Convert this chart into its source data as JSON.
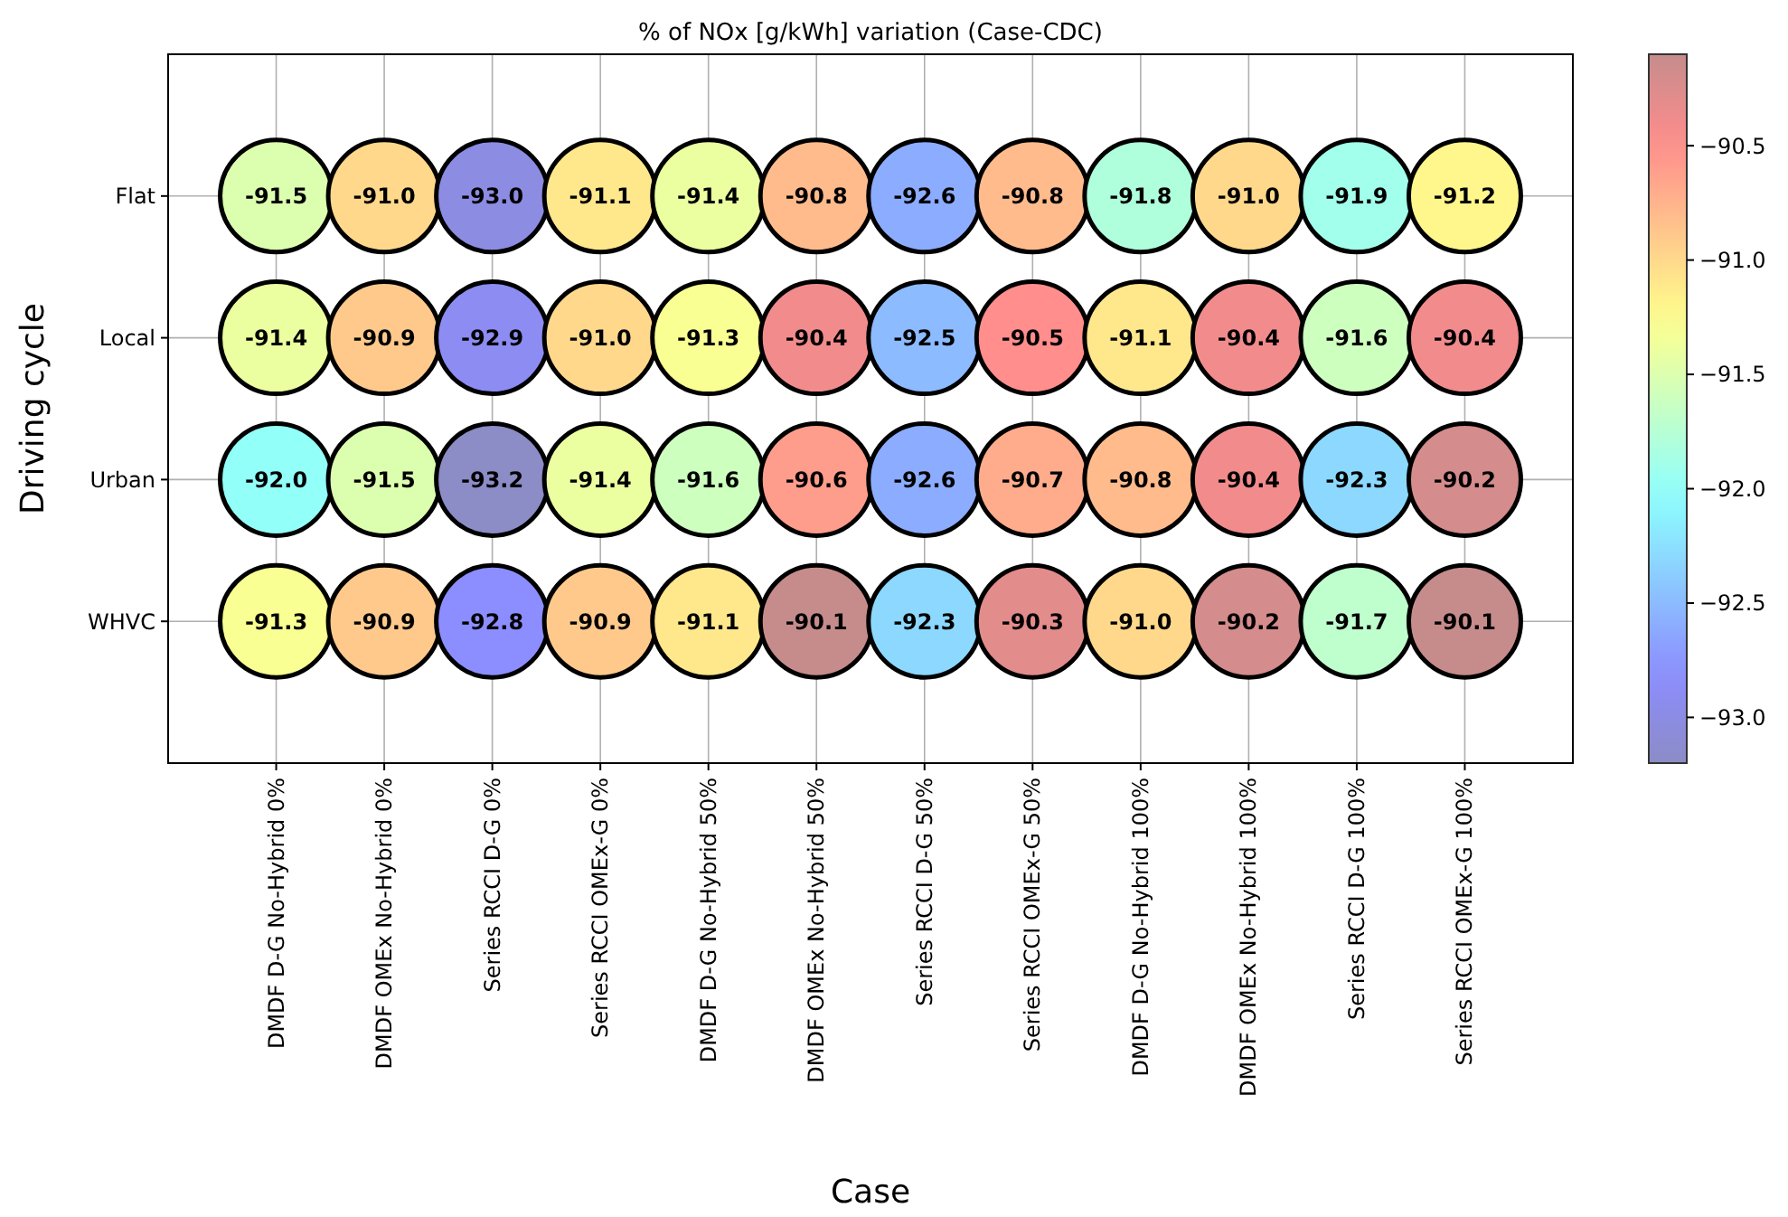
{
  "chart_data": {
    "type": "heatmap",
    "title": "% of NOx [g/kWh] variation (Case-CDC)",
    "xlabel": "Case",
    "ylabel": "Driving cycle",
    "categories": [
      "DMDF D-G No-Hybrid 0%",
      "DMDF OMEx No-Hybrid 0%",
      "Series RCCI D-G 0%",
      "Series RCCI OMEx-G 0%",
      "DMDF D-G No-Hybrid 50%",
      "DMDF OMEx No-Hybrid 50%",
      "Series RCCI D-G 50%",
      "Series RCCI OMEx-G 50%",
      "DMDF D-G No-Hybrid 100%",
      "DMDF OMEx No-Hybrid 100%",
      "Series RCCI D-G 100%",
      "Series RCCI OMEx-G 100%"
    ],
    "y_categories": [
      "Flat",
      "Local",
      "Urban",
      "WHVC"
    ],
    "cells": [
      [
        -91.5,
        -91.0,
        -93.0,
        -91.1,
        -91.4,
        -90.8,
        -92.6,
        -90.8,
        -91.8,
        -91.0,
        -91.9,
        -91.2
      ],
      [
        -91.4,
        -90.9,
        -92.9,
        -91.0,
        -91.3,
        -90.4,
        -92.5,
        -90.5,
        -91.1,
        -90.4,
        -91.6,
        -90.4
      ],
      [
        -92.0,
        -91.5,
        -93.2,
        -91.4,
        -91.6,
        -90.6,
        -92.6,
        -90.7,
        -90.8,
        -90.4,
        -92.3,
        -90.2
      ],
      [
        -91.3,
        -90.9,
        -92.8,
        -90.9,
        -91.1,
        -90.1,
        -92.3,
        -90.3,
        -91.0,
        -90.2,
        -91.7,
        -90.1
      ]
    ],
    "cell_labels": [
      [
        "-91.5",
        "-91.0",
        "-93.0",
        "-91.1",
        "-91.4",
        "-90.8",
        "-92.6",
        "-90.8",
        "-91.8",
        "-91.0",
        "-91.9",
        "-91.2"
      ],
      [
        "-91.4",
        "-90.9",
        "-92.9",
        "-91.0",
        "-91.3",
        "-90.4",
        "-92.5",
        "-90.5",
        "-91.1",
        "-90.4",
        "-91.6",
        "-90.4"
      ],
      [
        "-92.0",
        "-91.5",
        "-93.2",
        "-91.4",
        "-91.6",
        "-90.6",
        "-92.6",
        "-90.7",
        "-90.8",
        "-90.4",
        "-92.3",
        "-90.2"
      ],
      [
        "-91.3",
        "-90.9",
        "-92.8",
        "-90.9",
        "-91.1",
        "-90.1",
        "-92.3",
        "-90.3",
        "-91.0",
        "-90.2",
        "-91.7",
        "-90.1"
      ]
    ],
    "clim": [
      -93.2,
      -90.1
    ],
    "cticks": [
      {
        "value": -93.0,
        "label": "−93.0"
      },
      {
        "value": -92.5,
        "label": "−92.5"
      },
      {
        "value": -92.0,
        "label": "−92.0"
      },
      {
        "value": -91.5,
        "label": "−91.5"
      },
      {
        "value": -91.0,
        "label": "−91.0"
      },
      {
        "value": -90.5,
        "label": "−90.5"
      }
    ],
    "marker": "circle",
    "grid": true,
    "data_labels": true
  }
}
